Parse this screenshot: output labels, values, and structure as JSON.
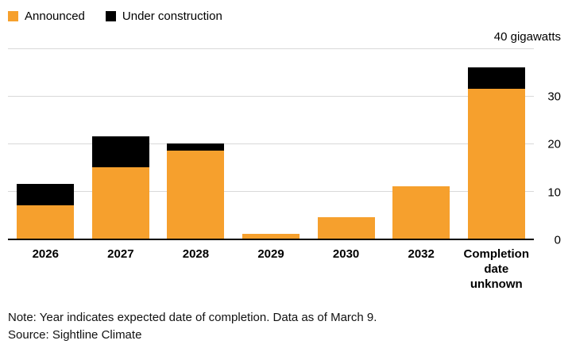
{
  "legend": [
    {
      "label": "Announced",
      "color": "#F6A02D"
    },
    {
      "label": "Under construction",
      "color": "#000000"
    }
  ],
  "axis": {
    "unit_label": "40 gigawatts",
    "yticks": [
      30,
      20,
      10,
      0
    ]
  },
  "chart_data": {
    "type": "bar",
    "stacked": true,
    "categories": [
      "2026",
      "2027",
      "2028",
      "2029",
      "2030",
      "2032",
      "Completion date unknown"
    ],
    "series": [
      {
        "name": "Announced",
        "color": "#F6A02D",
        "values": [
          7,
          15,
          18.5,
          1,
          4.5,
          11,
          31.5
        ]
      },
      {
        "name": "Under construction",
        "color": "#000000",
        "values": [
          4.5,
          6.5,
          1.5,
          0,
          0,
          0,
          4.5
        ]
      }
    ],
    "title": "",
    "xlabel": "",
    "ylabel": "gigawatts",
    "ylim": [
      0,
      40
    ],
    "gridline_values": [
      40,
      30,
      20,
      10
    ],
    "grid": true,
    "legend_position": "top-left"
  },
  "note": {
    "line1": "Note: Year indicates expected date of completion. Data as of March 9.",
    "line2": "Source: Sightline Climate"
  }
}
